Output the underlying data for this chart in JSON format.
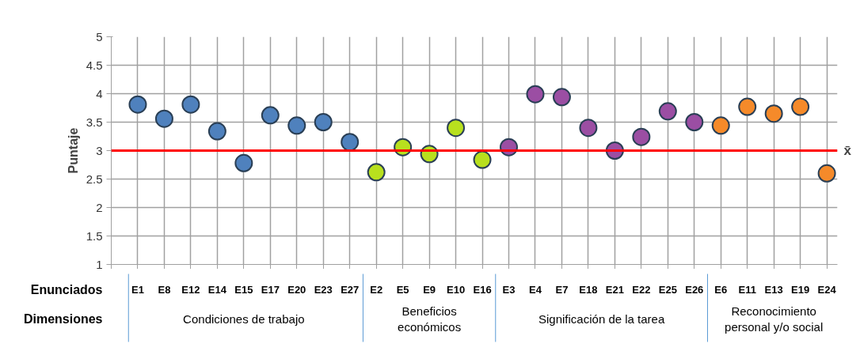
{
  "chart_data": {
    "type": "scatter",
    "ylabel": "Puntaje",
    "categories": [
      "E1",
      "E8",
      "E12",
      "E14",
      "E15",
      "E17",
      "E20",
      "E23",
      "E27",
      "E2",
      "E5",
      "E9",
      "E10",
      "E16",
      "E3",
      "E4",
      "E7",
      "E18",
      "E21",
      "E22",
      "E25",
      "E26",
      "E6",
      "E11",
      "E13",
      "E19",
      "E24"
    ],
    "series": [
      {
        "color": "#4f81bd",
        "values": [
          3.81,
          3.56,
          3.81,
          3.34,
          2.78,
          3.62,
          3.44,
          3.5,
          3.15,
          null,
          null,
          null,
          null,
          null,
          null,
          null,
          null,
          null,
          null,
          null,
          null,
          null,
          null,
          null,
          null,
          null,
          null
        ]
      },
      {
        "color": "#b8e01e",
        "values": [
          null,
          null,
          null,
          null,
          null,
          null,
          null,
          null,
          null,
          2.62,
          3.06,
          2.94,
          3.4,
          2.84,
          null,
          null,
          null,
          null,
          null,
          null,
          null,
          null,
          null,
          null,
          null,
          null,
          null
        ]
      },
      {
        "color": "#9b4ea3",
        "values": [
          null,
          null,
          null,
          null,
          null,
          null,
          null,
          null,
          null,
          null,
          null,
          null,
          null,
          null,
          3.06,
          3.99,
          3.94,
          3.4,
          3.0,
          3.24,
          3.69,
          3.5,
          null,
          null,
          null,
          null,
          null
        ]
      },
      {
        "color": "#f58a2a",
        "values": [
          null,
          null,
          null,
          null,
          null,
          null,
          null,
          null,
          null,
          null,
          null,
          null,
          null,
          null,
          null,
          null,
          null,
          null,
          null,
          null,
          null,
          null,
          3.44,
          3.77,
          3.65,
          3.77,
          2.6
        ]
      }
    ],
    "ylim": [
      1,
      5
    ],
    "yticks": [
      1,
      1.5,
      2,
      2.5,
      3,
      3.5,
      4,
      4.5,
      5
    ],
    "ref_lines": [
      {
        "axis": "y",
        "value": 3,
        "label": "x̄",
        "color": "#ff0000"
      }
    ],
    "annotations": [
      "Enunciados",
      "Dimensiones",
      "Condiciones de trabajo",
      "Beneficios económicos",
      "Significación de la tarea",
      "Reconocimiento personal y/o social"
    ],
    "grid": true,
    "marker": "circle"
  }
}
